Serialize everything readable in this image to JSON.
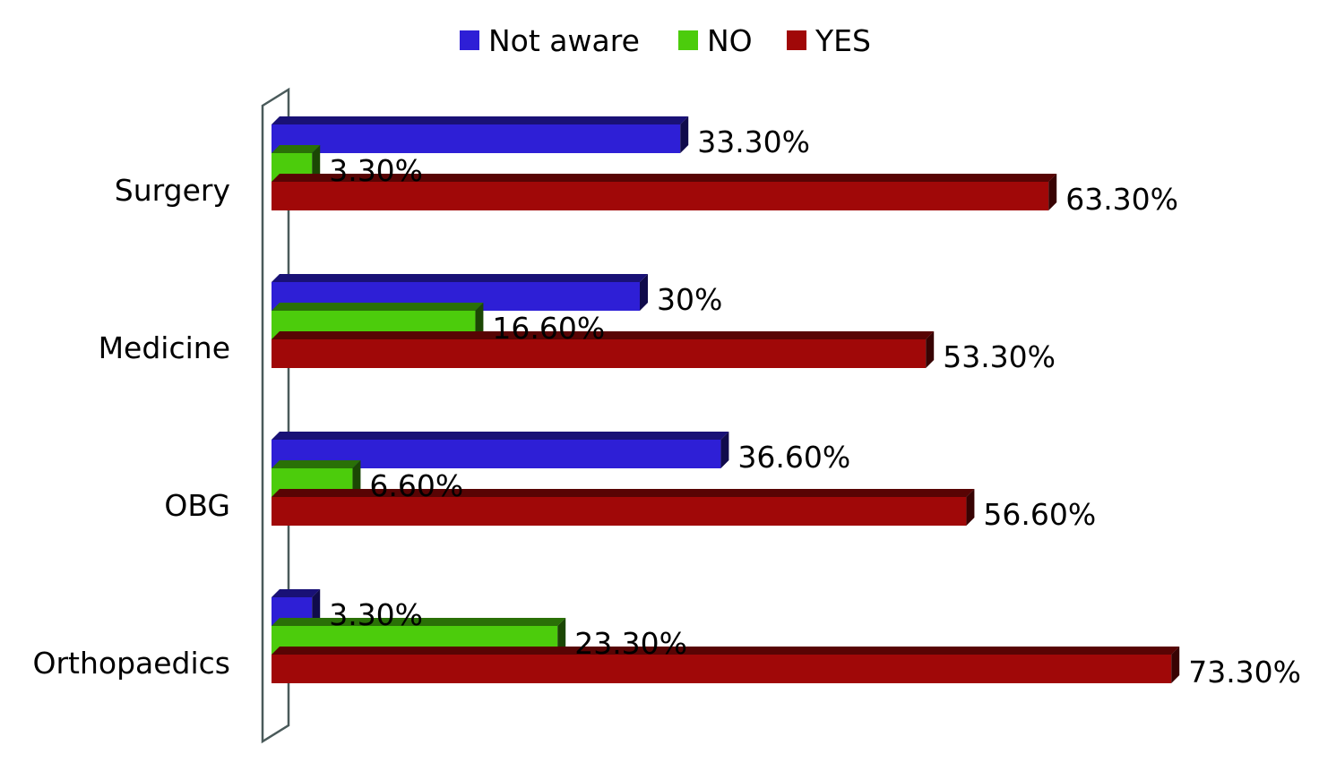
{
  "chart_data": {
    "type": "bar",
    "orientation": "horizontal",
    "style": "3d",
    "categories": [
      "Surgery",
      "Medicine",
      "OBG",
      "Orthopaedics"
    ],
    "series": [
      {
        "name": "Not aware",
        "color": "#2e1fd6",
        "values": [
          33.3,
          30,
          36.6,
          3.3
        ],
        "labels": [
          "33.30%",
          "30%",
          "36.60%",
          "3.30%"
        ]
      },
      {
        "name": "NO",
        "color": "#4ccc0c",
        "values": [
          3.3,
          16.6,
          6.6,
          23.3
        ],
        "labels": [
          "3.30%",
          "16.60%",
          "6.60%",
          "23.30%"
        ]
      },
      {
        "name": "YES",
        "color": "#a00808",
        "values": [
          63.3,
          53.3,
          56.6,
          73.3
        ],
        "labels": [
          "63.30%",
          "53.30%",
          "56.60%",
          "73.30%"
        ]
      }
    ],
    "xlim": [
      0,
      100
    ],
    "grid": false,
    "legend": "top-center"
  }
}
